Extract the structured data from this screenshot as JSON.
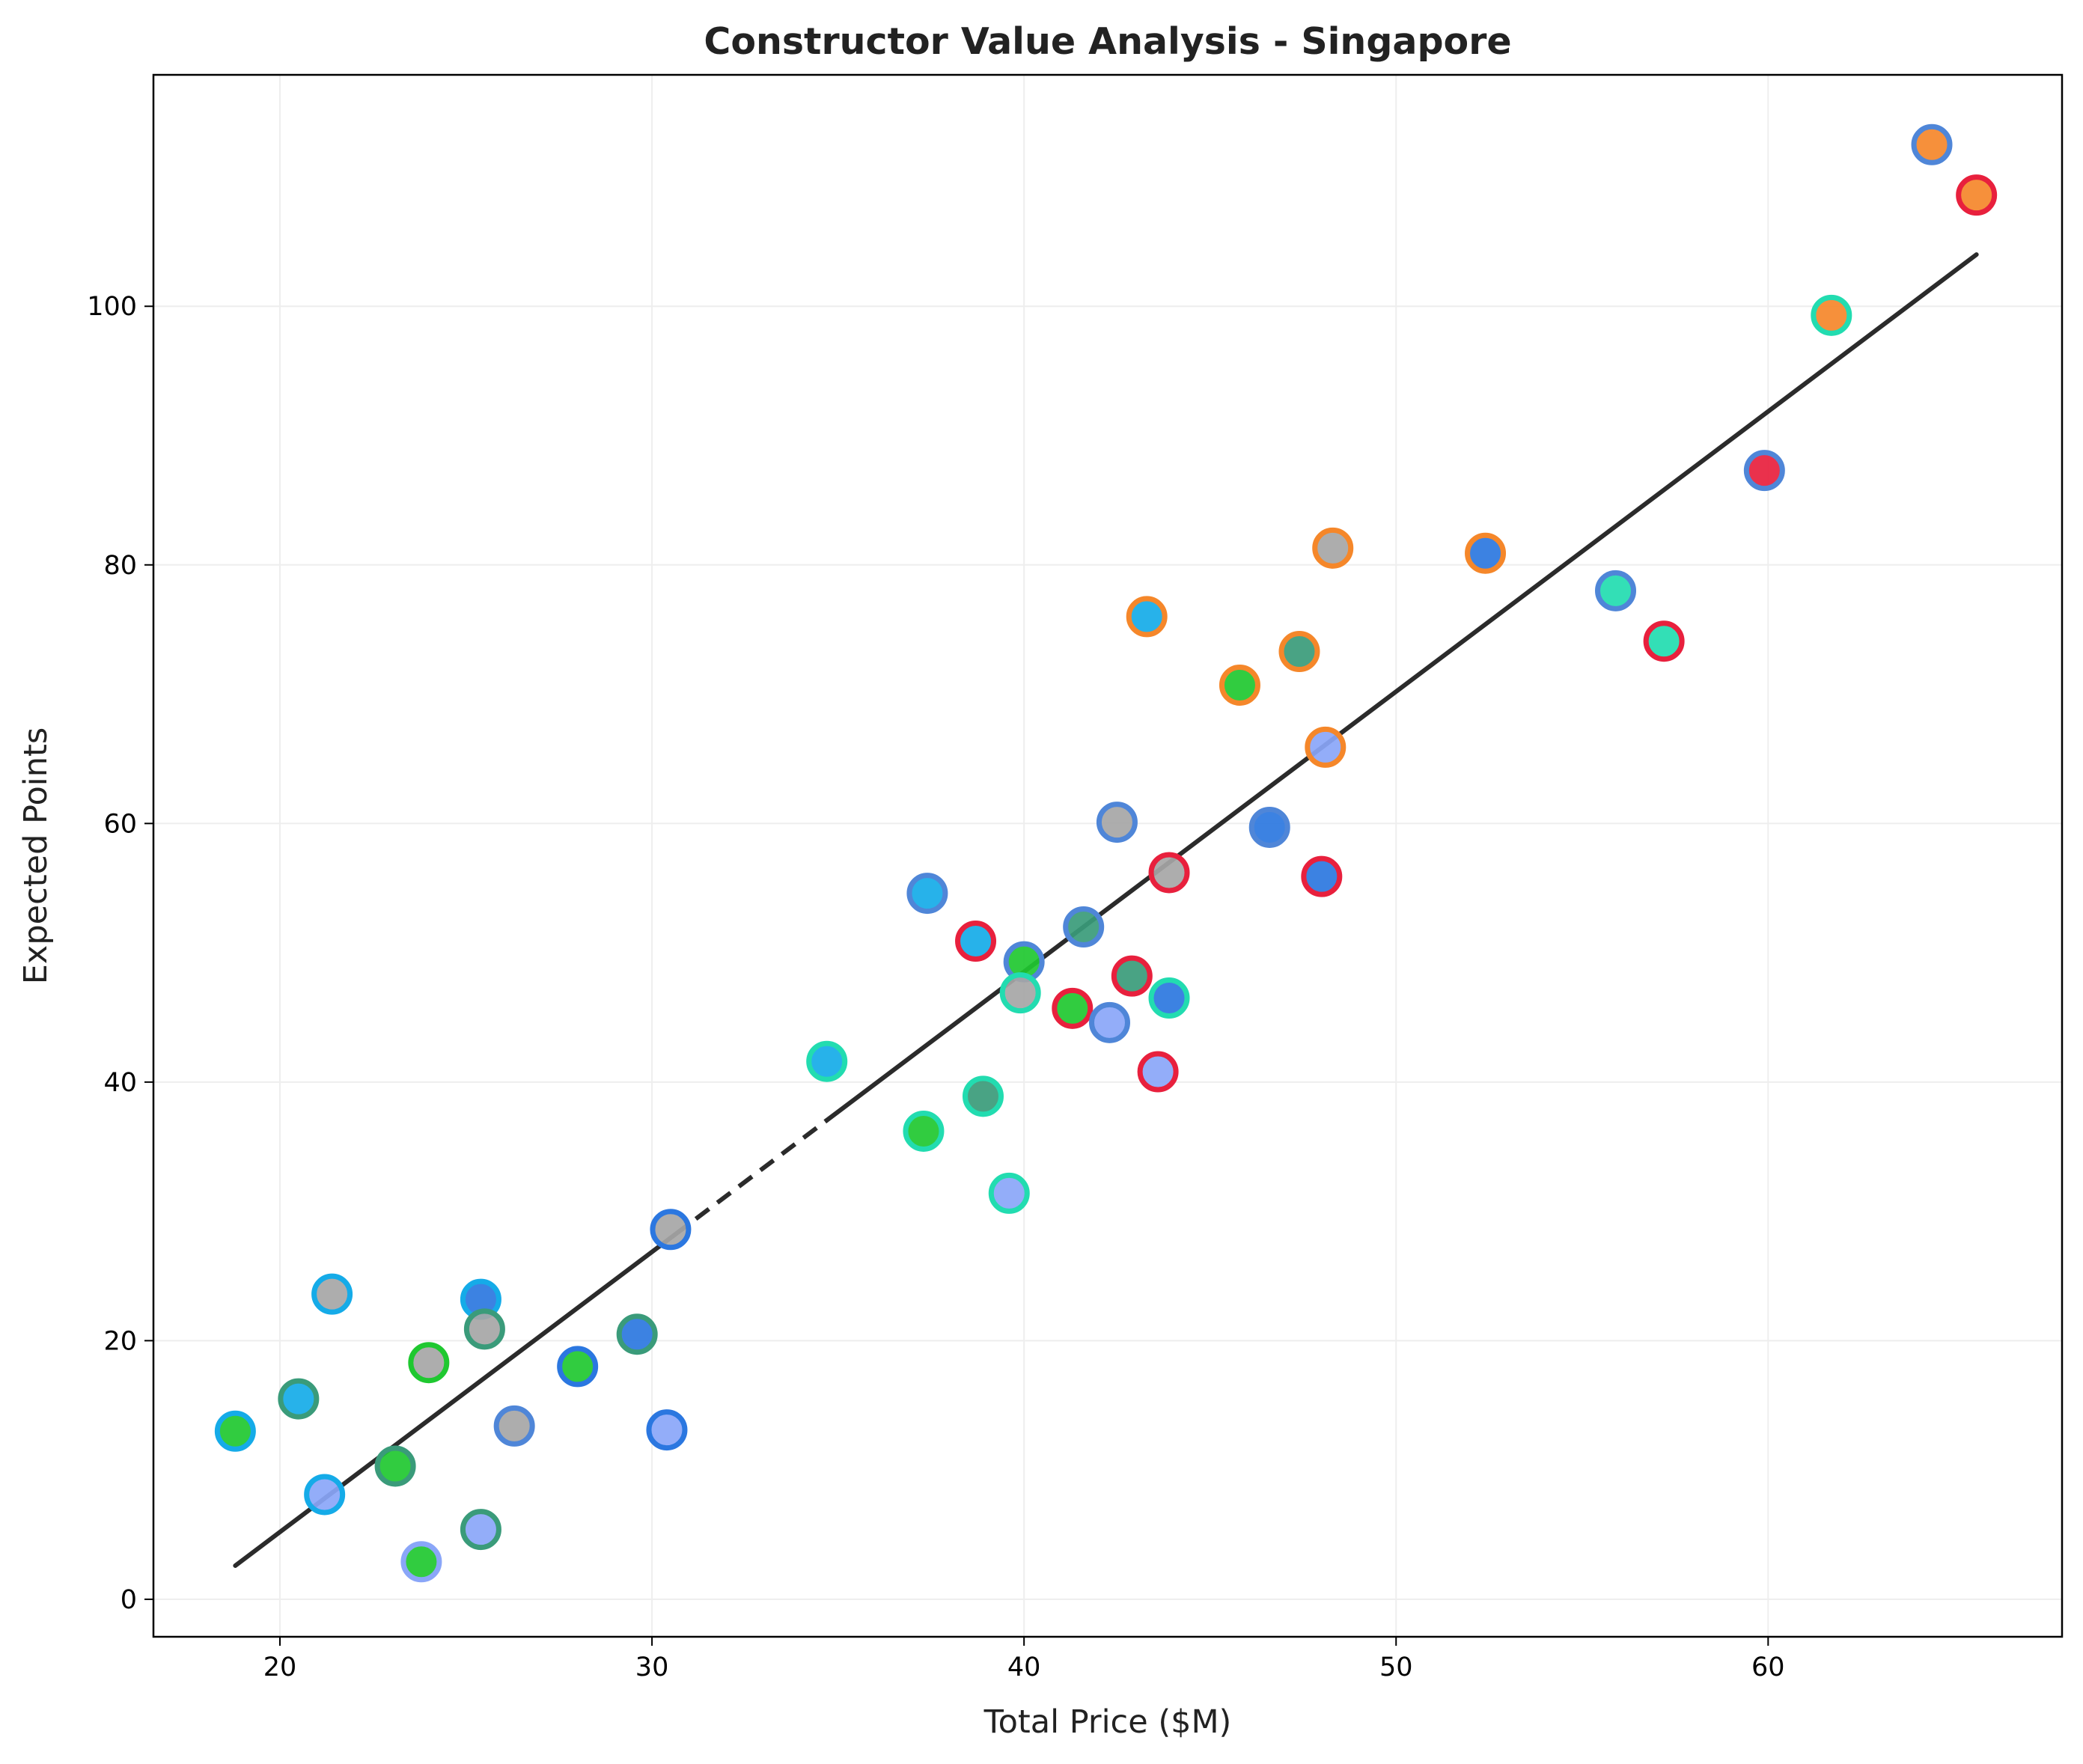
{
  "chart_data": {
    "type": "scatter",
    "title": "Constructor Value Analysis - Singapore",
    "xlabel": "Total Price ($M)",
    "ylabel": "Expected Points",
    "xlim": [
      16.6,
      67.9
    ],
    "ylim": [
      -2.9,
      117.9
    ],
    "xticks": [
      20,
      30,
      40,
      50,
      60
    ],
    "yticks": [
      0,
      20,
      40,
      60,
      80,
      100
    ],
    "xtick_labels": [
      "20",
      "30",
      "40",
      "50",
      "60"
    ],
    "ytick_labels": [
      "0",
      "20",
      "40",
      "60",
      "80",
      "100"
    ],
    "grid": true,
    "trendline": {
      "x_start": 18.8,
      "y_start": 2.6,
      "x_end": 65.6,
      "y_end": 104.0,
      "dashed_segment_x": [
        30.6,
        34.7
      ],
      "color": "#2b2b2b"
    },
    "points": [
      {
        "x": 64.4,
        "y": 112.5,
        "fill": "#f5872a",
        "edge": "#4f86d8"
      },
      {
        "x": 65.6,
        "y": 108.6,
        "fill": "#f5872a",
        "edge": "#e8203d"
      },
      {
        "x": 61.7,
        "y": 99.3,
        "fill": "#f5872a",
        "edge": "#22dcb0"
      },
      {
        "x": 59.9,
        "y": 87.3,
        "fill": "#e8203d",
        "edge": "#4f86d8"
      },
      {
        "x": 48.3,
        "y": 81.3,
        "fill": "#a6a6a6",
        "edge": "#f5872a"
      },
      {
        "x": 52.4,
        "y": 80.9,
        "fill": "#2b77e0",
        "edge": "#f5872a"
      },
      {
        "x": 55.9,
        "y": 78.0,
        "fill": "#22dcb0",
        "edge": "#4f86d8"
      },
      {
        "x": 43.3,
        "y": 76.0,
        "fill": "#15abe8",
        "edge": "#f5872a"
      },
      {
        "x": 57.2,
        "y": 74.1,
        "fill": "#22dcb0",
        "edge": "#e8203d"
      },
      {
        "x": 47.4,
        "y": 73.3,
        "fill": "#3a9b7a",
        "edge": "#f5872a"
      },
      {
        "x": 45.8,
        "y": 70.7,
        "fill": "#1fc830",
        "edge": "#f5872a"
      },
      {
        "x": 48.1,
        "y": 65.9,
        "fill": "#8aa6f8",
        "edge": "#f5872a"
      },
      {
        "x": 42.5,
        "y": 60.1,
        "fill": "#a6a6a6",
        "edge": "#4f86d8"
      },
      {
        "x": 46.6,
        "y": 59.7,
        "fill": "#2b77e0",
        "edge": "#4f86d8"
      },
      {
        "x": 43.9,
        "y": 56.2,
        "fill": "#a6a6a6",
        "edge": "#e8203d"
      },
      {
        "x": 48.0,
        "y": 55.9,
        "fill": "#2b77e0",
        "edge": "#e8203d"
      },
      {
        "x": 37.4,
        "y": 54.6,
        "fill": "#15abe8",
        "edge": "#4f86d8"
      },
      {
        "x": 41.6,
        "y": 52.0,
        "fill": "#3a9b7a",
        "edge": "#4f86d8"
      },
      {
        "x": 38.7,
        "y": 50.9,
        "fill": "#15abe8",
        "edge": "#e8203d"
      },
      {
        "x": 40.0,
        "y": 49.3,
        "fill": "#1fc830",
        "edge": "#4f86d8"
      },
      {
        "x": 42.9,
        "y": 48.2,
        "fill": "#3a9b7a",
        "edge": "#e8203d"
      },
      {
        "x": 39.9,
        "y": 46.9,
        "fill": "#a6a6a6",
        "edge": "#22dcb0"
      },
      {
        "x": 43.9,
        "y": 46.5,
        "fill": "#2b77e0",
        "edge": "#22dcb0"
      },
      {
        "x": 41.3,
        "y": 45.7,
        "fill": "#1fc830",
        "edge": "#e8203d"
      },
      {
        "x": 42.3,
        "y": 44.6,
        "fill": "#8aa6f8",
        "edge": "#4f86d8"
      },
      {
        "x": 34.7,
        "y": 41.6,
        "fill": "#15abe8",
        "edge": "#22dcb0"
      },
      {
        "x": 43.6,
        "y": 40.8,
        "fill": "#8aa6f8",
        "edge": "#e8203d"
      },
      {
        "x": 38.9,
        "y": 38.9,
        "fill": "#3a9b7a",
        "edge": "#22dcb0"
      },
      {
        "x": 37.3,
        "y": 36.2,
        "fill": "#1fc830",
        "edge": "#22dcb0"
      },
      {
        "x": 39.6,
        "y": 31.4,
        "fill": "#8aa6f8",
        "edge": "#22dcb0"
      },
      {
        "x": 30.5,
        "y": 28.6,
        "fill": "#a6a6a6",
        "edge": "#2b77e0"
      },
      {
        "x": 21.4,
        "y": 23.6,
        "fill": "#a6a6a6",
        "edge": "#15abe8"
      },
      {
        "x": 25.4,
        "y": 23.2,
        "fill": "#2b77e0",
        "edge": "#15abe8"
      },
      {
        "x": 25.5,
        "y": 20.9,
        "fill": "#a6a6a6",
        "edge": "#3a9b7a"
      },
      {
        "x": 29.6,
        "y": 20.5,
        "fill": "#2b77e0",
        "edge": "#3a9b7a"
      },
      {
        "x": 24.0,
        "y": 18.3,
        "fill": "#a6a6a6",
        "edge": "#1fc830"
      },
      {
        "x": 28.0,
        "y": 18.0,
        "fill": "#1fc830",
        "edge": "#2b77e0"
      },
      {
        "x": 20.5,
        "y": 15.5,
        "fill": "#15abe8",
        "edge": "#3a9b7a"
      },
      {
        "x": 26.3,
        "y": 13.4,
        "fill": "#a6a6a6",
        "edge": "#4f86d8"
      },
      {
        "x": 30.4,
        "y": 13.1,
        "fill": "#8aa6f8",
        "edge": "#2b77e0"
      },
      {
        "x": 18.8,
        "y": 13.0,
        "fill": "#1fc830",
        "edge": "#15abe8"
      },
      {
        "x": 23.1,
        "y": 10.3,
        "fill": "#1fc830",
        "edge": "#3a9b7a"
      },
      {
        "x": 21.2,
        "y": 8.1,
        "fill": "#8aa6f8",
        "edge": "#15abe8"
      },
      {
        "x": 25.4,
        "y": 5.4,
        "fill": "#8aa6f8",
        "edge": "#3a9b7a"
      },
      {
        "x": 23.8,
        "y": 2.9,
        "fill": "#1fc830",
        "edge": "#8aa6f8"
      }
    ]
  }
}
